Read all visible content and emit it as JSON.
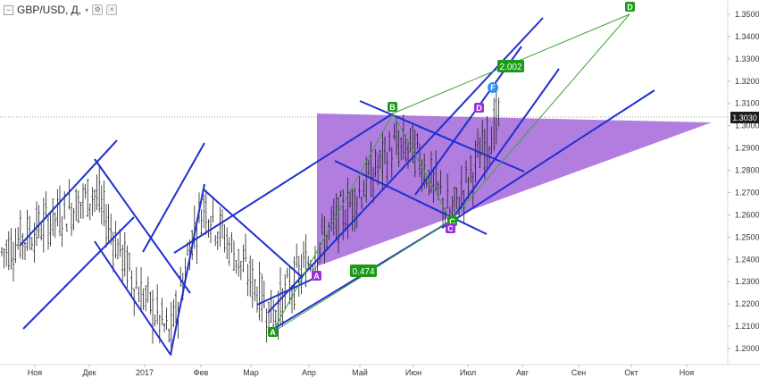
{
  "header": {
    "collapse_symbol": "−",
    "symbol": "GBP/USD, Д,",
    "caret": "▾",
    "settings_icon": "settings-icon",
    "close_icon": "close-icon"
  },
  "price_axis": {
    "ticks": [
      "1.3500",
      "1.3400",
      "1.3300",
      "1.3200",
      "1.3100",
      "1.3000",
      "1.2900",
      "1.2800",
      "1.2700",
      "1.2600",
      "1.2500",
      "1.2400",
      "1.2300",
      "1.2200",
      "1.2100",
      "1.2000"
    ],
    "current_price": "1.3030"
  },
  "time_axis": {
    "ticks": [
      "Ноя",
      "Дек",
      "2017",
      "Фев",
      "Мар",
      "Апр",
      "Май",
      "Июн",
      "Июл",
      "Авг",
      "Сен",
      "Окт",
      "Ноя"
    ]
  },
  "annotations": {
    "ratio_1": "2.002",
    "ratio_2": "0.474"
  },
  "pattern_labels": [
    "A",
    "B",
    "C",
    "D",
    "A",
    "C",
    "D",
    "F"
  ],
  "chart_data": {
    "type": "candlestick",
    "title": "GBP/USD, Д,",
    "instrument": "GBP/USD",
    "timeframe": "Д",
    "ylim": [
      1.195,
      1.358
    ],
    "x_range": [
      "Ноя",
      "Ноя"
    ],
    "current_price": 1.303,
    "price_path": [
      {
        "month": "Ноя",
        "price": 1.243
      },
      {
        "month": "Дек",
        "price": 1.27
      },
      {
        "month": "2017",
        "price": 1.23
      },
      {
        "month": "2017",
        "price": 1.205
      },
      {
        "month": "Фев",
        "price": 1.25
      },
      {
        "month": "Фев",
        "price": 1.265
      },
      {
        "month": "Мар",
        "price": 1.215
      },
      {
        "month": "Апр",
        "price": 1.245
      },
      {
        "month": "Май",
        "price": 1.29
      },
      {
        "month": "Июн",
        "price": 1.29
      },
      {
        "month": "Июн",
        "price": 1.26
      },
      {
        "month": "Июл",
        "price": 1.305
      }
    ],
    "harmonic_points": [
      {
        "label": "A",
        "month": "Мар",
        "price": 1.209
      },
      {
        "label": "B",
        "month": "Май",
        "price": 1.307
      },
      {
        "label": "C",
        "month": "Июн",
        "price": 1.258
      },
      {
        "label": "D",
        "month": "Окт",
        "price": 1.35
      }
    ],
    "ratios": [
      2.002,
      0.474
    ],
    "grid": false,
    "legend": "none"
  }
}
